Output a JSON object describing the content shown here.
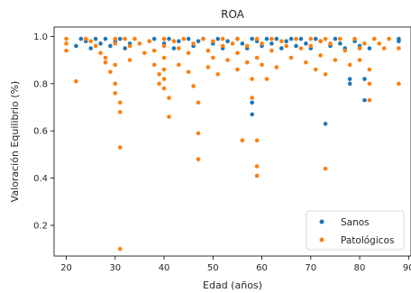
{
  "chart_data": {
    "type": "scatter",
    "title": "ROA",
    "xlabel": "Edad (años)",
    "ylabel": "Valoración Equilibrio (%)",
    "xlim": [
      17.5,
      90.5
    ],
    "ylim": [
      0.07,
      1.04
    ],
    "xticks": [
      "20",
      "30",
      "40",
      "50",
      "60",
      "70",
      "80",
      "90"
    ],
    "yticks": [
      "0.2",
      "0.4",
      "0.6",
      "0.8",
      "1.0"
    ],
    "grid": false,
    "legend_position": "bottom-right",
    "series": [
      {
        "name": "Sanos",
        "color": "#1f77b4",
        "points": [
          [
            22,
            0.96
          ],
          [
            23,
            0.99
          ],
          [
            24,
            0.98
          ],
          [
            25,
            0.95
          ],
          [
            26,
            0.99
          ],
          [
            27,
            0.97
          ],
          [
            28,
            0.99
          ],
          [
            29,
            0.96
          ],
          [
            30,
            0.98
          ],
          [
            31,
            0.99
          ],
          [
            32,
            0.95
          ],
          [
            33,
            0.97
          ],
          [
            38,
            0.99
          ],
          [
            40,
            0.97
          ],
          [
            41,
            0.99
          ],
          [
            42,
            0.95
          ],
          [
            43,
            0.98
          ],
          [
            45,
            0.99
          ],
          [
            46,
            0.96
          ],
          [
            47,
            0.98
          ],
          [
            48,
            0.99
          ],
          [
            50,
            0.97
          ],
          [
            51,
            0.99
          ],
          [
            52,
            0.95
          ],
          [
            53,
            0.98
          ],
          [
            55,
            0.99
          ],
          [
            56,
            0.97
          ],
          [
            57,
            0.95
          ],
          [
            58,
            0.99
          ],
          [
            58,
            0.72
          ],
          [
            58,
            0.67
          ],
          [
            59,
            0.98
          ],
          [
            60,
            0.96
          ],
          [
            61,
            0.99
          ],
          [
            62,
            0.97
          ],
          [
            63,
            0.99
          ],
          [
            64,
            0.95
          ],
          [
            65,
            0.98
          ],
          [
            66,
            0.99
          ],
          [
            67,
            0.96
          ],
          [
            68,
            0.99
          ],
          [
            69,
            0.97
          ],
          [
            70,
            0.95
          ],
          [
            71,
            0.99
          ],
          [
            72,
            0.98
          ],
          [
            73,
            0.63
          ],
          [
            74,
            0.96
          ],
          [
            75,
            0.99
          ],
          [
            76,
            0.97
          ],
          [
            77,
            0.95
          ],
          [
            78,
            0.82
          ],
          [
            78,
            0.8
          ],
          [
            79,
            0.98
          ],
          [
            80,
            0.96
          ],
          [
            81,
            0.82
          ],
          [
            81,
            0.73
          ],
          [
            82,
            0.95
          ],
          [
            88,
            0.99
          ],
          [
            88,
            0.98
          ]
        ]
      },
      {
        "name": "Patológicos",
        "color": "#ff7f0e",
        "points": [
          [
            20,
            0.99
          ],
          [
            20,
            0.97
          ],
          [
            20,
            0.94
          ],
          [
            22,
            0.81
          ],
          [
            24,
            0.99
          ],
          [
            25,
            0.98
          ],
          [
            26,
            0.96
          ],
          [
            27,
            0.93
          ],
          [
            28,
            0.91
          ],
          [
            28,
            0.89
          ],
          [
            29,
            0.85
          ],
          [
            30,
            0.99
          ],
          [
            30,
            0.97
          ],
          [
            30,
            0.88
          ],
          [
            30,
            0.8
          ],
          [
            30,
            0.76
          ],
          [
            31,
            0.72
          ],
          [
            31,
            0.68
          ],
          [
            31,
            0.53
          ],
          [
            31,
            0.1
          ],
          [
            32,
            0.99
          ],
          [
            33,
            0.96
          ],
          [
            33,
            0.9
          ],
          [
            34,
            0.99
          ],
          [
            35,
            0.97
          ],
          [
            36,
            0.93
          ],
          [
            37,
            0.98
          ],
          [
            38,
            0.94
          ],
          [
            38,
            0.88
          ],
          [
            39,
            0.84
          ],
          [
            39,
            0.8
          ],
          [
            40,
            0.99
          ],
          [
            40,
            0.96
          ],
          [
            40,
            0.91
          ],
          [
            40,
            0.86
          ],
          [
            40,
            0.82
          ],
          [
            40,
            0.78
          ],
          [
            41,
            0.74
          ],
          [
            41,
            0.66
          ],
          [
            42,
            0.98
          ],
          [
            43,
            0.95
          ],
          [
            43,
            0.88
          ],
          [
            44,
            0.99
          ],
          [
            45,
            0.93
          ],
          [
            45,
            0.85
          ],
          [
            46,
            0.97
          ],
          [
            46,
            0.79
          ],
          [
            47,
            0.72
          ],
          [
            47,
            0.59
          ],
          [
            47,
            0.48
          ],
          [
            48,
            0.99
          ],
          [
            49,
            0.94
          ],
          [
            49,
            0.87
          ],
          [
            50,
            0.98
          ],
          [
            50,
            0.91
          ],
          [
            51,
            0.84
          ],
          [
            52,
            0.99
          ],
          [
            52,
            0.96
          ],
          [
            53,
            0.9
          ],
          [
            54,
            0.97
          ],
          [
            55,
            0.99
          ],
          [
            55,
            0.93
          ],
          [
            55,
            0.86
          ],
          [
            56,
            0.56
          ],
          [
            57,
            0.96
          ],
          [
            57,
            0.89
          ],
          [
            58,
            0.82
          ],
          [
            58,
            0.74
          ],
          [
            59,
            0.99
          ],
          [
            59,
            0.91
          ],
          [
            59,
            0.56
          ],
          [
            59,
            0.45
          ],
          [
            59,
            0.41
          ],
          [
            60,
            0.97
          ],
          [
            60,
            0.88
          ],
          [
            61,
            0.82
          ],
          [
            62,
            0.99
          ],
          [
            62,
            0.94
          ],
          [
            63,
            0.87
          ],
          [
            64,
            0.98
          ],
          [
            65,
            0.96
          ],
          [
            66,
            0.91
          ],
          [
            67,
            0.99
          ],
          [
            68,
            0.95
          ],
          [
            69,
            0.89
          ],
          [
            70,
            0.99
          ],
          [
            70,
            0.96
          ],
          [
            71,
            0.86
          ],
          [
            72,
            0.98
          ],
          [
            72,
            0.92
          ],
          [
            73,
            0.99
          ],
          [
            73,
            0.84
          ],
          [
            73,
            0.44
          ],
          [
            74,
            0.97
          ],
          [
            75,
            0.9
          ],
          [
            76,
            0.99
          ],
          [
            77,
            0.94
          ],
          [
            78,
            0.88
          ],
          [
            79,
            0.99
          ],
          [
            80,
            0.95
          ],
          [
            80,
            0.9
          ],
          [
            81,
            0.97
          ],
          [
            82,
            0.86
          ],
          [
            82,
            0.8
          ],
          [
            82,
            0.73
          ],
          [
            83,
            0.99
          ],
          [
            84,
            0.97
          ],
          [
            85,
            0.95
          ],
          [
            86,
            0.99
          ],
          [
            88,
            0.95
          ],
          [
            88,
            0.8
          ]
        ]
      }
    ]
  }
}
